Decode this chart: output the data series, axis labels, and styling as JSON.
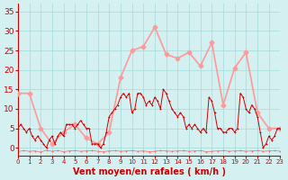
{
  "title": "",
  "xlabel": "Vent moyen/en rafales ( km/h )",
  "background_color": "#d4f0f0",
  "grid_color": "#aadddd",
  "line_color_avg": "#ff9999",
  "line_color_gust": "#cc0000",
  "line_color_dir": "#ff6666",
  "xlim": [
    0,
    23
  ],
  "ylim": [
    -2,
    37
  ],
  "yticks": [
    0,
    5,
    10,
    15,
    20,
    25,
    30,
    35
  ],
  "xticks": [
    0,
    1,
    2,
    3,
    4,
    5,
    6,
    7,
    8,
    9,
    10,
    11,
    12,
    13,
    14,
    15,
    16,
    17,
    18,
    19,
    20,
    21,
    22,
    23
  ],
  "avg_x": [
    0,
    1,
    2,
    3,
    4,
    5,
    6,
    7,
    8,
    9,
    10,
    11,
    12,
    13,
    14,
    15,
    16,
    17,
    18,
    19,
    20,
    21,
    22,
    23
  ],
  "avg_y": [
    14,
    14,
    5,
    1,
    4,
    6,
    2.5,
    1,
    4,
    18,
    25,
    26,
    31,
    24,
    23,
    24.5,
    21,
    27,
    11,
    20.5,
    24.5,
    9,
    5,
    5
  ],
  "gust_x": [
    0,
    0.25,
    0.5,
    0.75,
    1.0,
    1.25,
    1.5,
    1.75,
    2.0,
    2.25,
    2.5,
    2.75,
    3.0,
    3.25,
    3.5,
    3.75,
    4.0,
    4.25,
    4.5,
    4.75,
    5.0,
    5.25,
    5.5,
    5.75,
    6.0,
    6.25,
    6.5,
    6.75,
    7.0,
    7.25,
    7.5,
    7.75,
    8.0,
    8.25,
    8.5,
    8.75,
    9.0,
    9.25,
    9.5,
    9.75,
    10.0,
    10.25,
    10.5,
    10.75,
    11.0,
    11.25,
    11.5,
    11.75,
    12.0,
    12.25,
    12.5,
    12.75,
    13.0,
    13.25,
    13.5,
    13.75,
    14.0,
    14.25,
    14.5,
    14.75,
    15.0,
    15.25,
    15.5,
    15.75,
    16.0,
    16.25,
    16.5,
    16.75,
    17.0,
    17.25,
    17.5,
    17.75,
    18.0,
    18.25,
    18.5,
    18.75,
    19.0,
    19.25,
    19.5,
    19.75,
    20.0,
    20.25,
    20.5,
    20.75,
    21.0,
    21.25,
    21.5,
    21.75,
    22.0,
    22.25,
    22.5,
    22.75,
    23.0
  ],
  "gust_y": [
    5,
    6,
    5,
    4,
    5,
    3,
    2,
    3,
    2,
    1,
    0,
    2,
    3,
    1,
    3,
    4,
    3,
    6,
    6,
    6,
    5,
    6,
    7,
    6,
    5,
    5,
    1,
    1,
    1,
    0,
    1,
    4,
    8,
    9,
    10,
    11,
    13,
    14,
    13,
    14,
    9,
    10,
    14,
    14,
    13,
    11,
    12,
    11,
    13,
    12,
    10,
    15,
    14,
    12,
    10,
    9,
    8,
    9,
    8,
    5,
    6,
    5,
    6,
    5,
    4,
    5,
    4,
    13,
    12,
    9,
    5,
    5,
    4,
    4,
    5,
    5,
    4,
    5,
    14,
    13,
    10,
    9,
    11,
    10,
    8,
    4,
    0,
    1,
    3,
    2,
    3,
    5,
    5
  ],
  "dir_x": [
    0,
    0.5,
    1.0,
    1.5,
    2.0,
    2.5,
    3.0,
    3.5,
    4.0,
    4.5,
    5.0,
    5.5,
    6.0,
    6.5,
    7.0,
    7.5,
    8.0,
    8.5,
    9.0,
    9.5,
    10.0,
    10.5,
    11.0,
    11.5,
    12.0,
    12.5,
    13.0,
    13.5,
    14.0,
    14.5,
    15.0,
    15.5,
    16.0,
    16.5,
    17.0,
    17.5,
    18.0,
    18.5,
    19.0,
    19.5,
    20.0,
    20.5,
    21.0,
    21.5,
    22.0,
    22.5,
    23.0
  ],
  "dir_y": [
    -1.0,
    -0.7,
    -0.9,
    -0.8,
    -1.1,
    -0.6,
    -0.9,
    -0.7,
    -1.0,
    -0.8,
    -0.7,
    -0.9,
    -0.8,
    -0.7,
    -0.9,
    -1.0,
    -0.8,
    -0.7,
    -0.9,
    -0.8,
    -0.7,
    -0.9,
    -0.8,
    -1.0,
    -0.9,
    -0.7,
    -0.8,
    -0.9,
    -0.8,
    -0.7,
    -0.9,
    -0.8,
    -0.7,
    -1.0,
    -0.9,
    -0.8,
    -0.7,
    -0.9,
    -0.8,
    -0.7,
    -0.9,
    -0.8,
    -0.7,
    -0.9,
    -0.8,
    -0.7,
    -0.9
  ]
}
